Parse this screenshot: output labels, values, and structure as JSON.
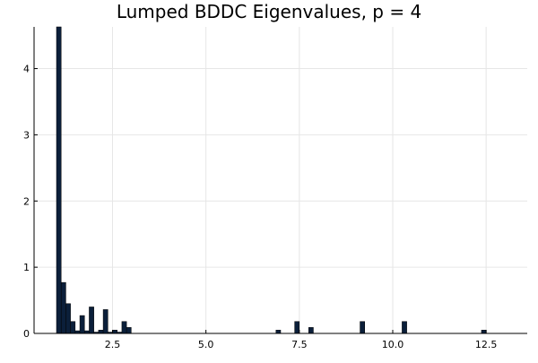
{
  "chart_data": {
    "type": "bar",
    "title": "Lumped BDDC Eigenvalues, p = 4",
    "xlabel": "",
    "ylabel": "",
    "xlim": [
      0.4,
      13.6
    ],
    "ylim": [
      0,
      4.63
    ],
    "xticks": [
      2.5,
      5.0,
      7.5,
      10.0,
      12.5
    ],
    "xtick_labels": [
      "2.5",
      "5.0",
      "7.5",
      "10.0",
      "12.5"
    ],
    "yticks": [
      0,
      1,
      2,
      3,
      4
    ],
    "ytick_labels": [
      "0",
      "1",
      "2",
      "3",
      "4"
    ],
    "grid": true,
    "legend": "none",
    "bar_color": "#0b1f3a",
    "bin_width": 0.125,
    "bins": [
      {
        "x": 1.0,
        "value": 4.63
      },
      {
        "x": 1.125,
        "value": 0.77
      },
      {
        "x": 1.25,
        "value": 0.45
      },
      {
        "x": 1.375,
        "value": 0.18
      },
      {
        "x": 1.5,
        "value": 0.04
      },
      {
        "x": 1.625,
        "value": 0.27
      },
      {
        "x": 1.75,
        "value": 0.04
      },
      {
        "x": 1.875,
        "value": 0.4
      },
      {
        "x": 2.0,
        "value": 0.02
      },
      {
        "x": 2.125,
        "value": 0.05
      },
      {
        "x": 2.25,
        "value": 0.36
      },
      {
        "x": 2.375,
        "value": 0.02
      },
      {
        "x": 2.5,
        "value": 0.05
      },
      {
        "x": 2.625,
        "value": 0.02
      },
      {
        "x": 2.75,
        "value": 0.18
      },
      {
        "x": 2.875,
        "value": 0.09
      },
      {
        "x": 6.875,
        "value": 0.05
      },
      {
        "x": 7.375,
        "value": 0.18
      },
      {
        "x": 7.75,
        "value": 0.09
      },
      {
        "x": 9.125,
        "value": 0.18
      },
      {
        "x": 10.25,
        "value": 0.18
      },
      {
        "x": 12.375,
        "value": 0.05
      }
    ]
  }
}
